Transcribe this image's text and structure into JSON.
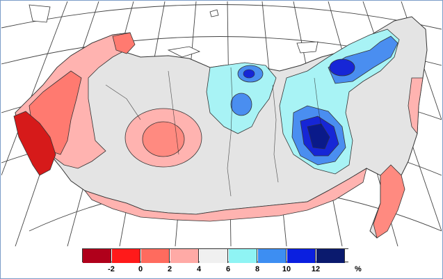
{
  "legend": {
    "colors": [
      "#b0001b",
      "#ff1a1a",
      "#ff6b5e",
      "#ffaaa6",
      "#f0f0f0",
      "#8ff4f4",
      "#3d8ef2",
      "#0a1fe0",
      "#0a1a6e"
    ],
    "ticks": [
      "-2",
      "0",
      "2",
      "4",
      "6",
      "8",
      "10",
      "12"
    ],
    "unit": "%"
  },
  "map_colors": {
    "ocean": "#ffffff",
    "land_outside": "#ffffff",
    "neutral": "#e6e6e6",
    "light_red": "#ffb3b0",
    "mid_red": "#ff7a70",
    "dark_red": "#d61a1a",
    "light_cyan": "#a8f3f5",
    "mid_blue": "#4a8ef0",
    "dark_blue": "#1626d6",
    "navy": "#0a1a8a"
  }
}
